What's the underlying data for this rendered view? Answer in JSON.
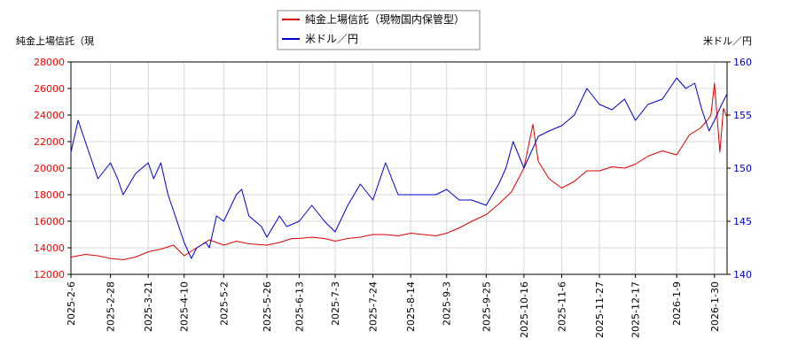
{
  "chart_data": {
    "type": "line",
    "y_left_label": "純金上場信託（現",
    "y_right_label": "米ドル／円",
    "legend": {
      "placement": "top-center"
    },
    "grid": true,
    "colors": {
      "left_axis": "#ff0000",
      "right_axis": "#0000cc",
      "grid": "#d8d8d8"
    },
    "ylim_left": [
      12000,
      28000
    ],
    "ylim_right": [
      140,
      160
    ],
    "yticks_left": [
      "28000",
      "26000",
      "24000",
      "22000",
      "20000",
      "18000",
      "16000",
      "14000",
      "12000"
    ],
    "yticks_right": [
      "160",
      "155",
      "150",
      "145",
      "140"
    ],
    "x_ticks": [
      "2025-2-6",
      "2025-2-28",
      "2025-3-21",
      "2025-4-10",
      "2025-5-2",
      "2025-5-26",
      "2025-6-13",
      "2025-7-3",
      "2025-7-24",
      "2025-8-14",
      "2025-9-3",
      "2025-9-25",
      "2025-10-16",
      "2025-11-6",
      "2025-11-27",
      "2025-12-17",
      "2026-1-9",
      "2026-1-30"
    ],
    "series": [
      {
        "name": "純金上場信託（現物国内保管型）",
        "axis": "left",
        "color": "#dd0000",
        "x": [
          "2025-2-6",
          "2025-2-14",
          "2025-2-21",
          "2025-2-28",
          "2025-3-7",
          "2025-3-14",
          "2025-3-21",
          "2025-3-28",
          "2025-4-4",
          "2025-4-10",
          "2025-4-17",
          "2025-4-24",
          "2025-5-2",
          "2025-5-9",
          "2025-5-16",
          "2025-5-26",
          "2025-6-2",
          "2025-6-9",
          "2025-6-13",
          "2025-6-20",
          "2025-6-27",
          "2025-7-3",
          "2025-7-10",
          "2025-7-17",
          "2025-7-24",
          "2025-7-31",
          "2025-8-7",
          "2025-8-14",
          "2025-8-21",
          "2025-8-28",
          "2025-9-3",
          "2025-9-10",
          "2025-9-17",
          "2025-9-25",
          "2025-10-2",
          "2025-10-9",
          "2025-10-16",
          "2025-10-21",
          "2025-10-24",
          "2025-10-30",
          "2025-11-6",
          "2025-11-13",
          "2025-11-20",
          "2025-11-27",
          "2025-12-4",
          "2025-12-11",
          "2025-12-17",
          "2025-12-24",
          "2026-1-1",
          "2026-1-9",
          "2026-1-16",
          "2026-1-22",
          "2026-1-26",
          "2026-1-28",
          "2026-1-30",
          "2026-2-2",
          "2026-2-4",
          "2026-2-6"
        ],
        "y": [
          13300,
          13500,
          13400,
          13200,
          13100,
          13300,
          13700,
          13900,
          14200,
          13400,
          14000,
          14600,
          14200,
          14500,
          14300,
          14200,
          14400,
          14700,
          14700,
          14800,
          14700,
          14500,
          14700,
          14800,
          15000,
          15000,
          14900,
          15100,
          15000,
          14900,
          15100,
          15500,
          16000,
          16500,
          17300,
          18200,
          20000,
          23300,
          20500,
          19200,
          18500,
          19000,
          19800,
          19800,
          20100,
          20000,
          20300,
          20900,
          21300,
          21000,
          22500,
          23000,
          23600,
          24000,
          26400,
          21200,
          24500,
          23800
        ]
      },
      {
        "name": "米ドル／円",
        "axis": "right",
        "color": "#0000cc",
        "x": [
          "2025-2-6",
          "2025-2-10",
          "2025-2-14",
          "2025-2-21",
          "2025-2-28",
          "2025-3-4",
          "2025-3-7",
          "2025-3-14",
          "2025-3-21",
          "2025-3-24",
          "2025-3-28",
          "2025-4-1",
          "2025-4-4",
          "2025-4-8",
          "2025-4-10",
          "2025-4-14",
          "2025-4-17",
          "2025-4-22",
          "2025-4-24",
          "2025-4-28",
          "2025-5-2",
          "2025-5-9",
          "2025-5-12",
          "2025-5-16",
          "2025-5-23",
          "2025-5-26",
          "2025-6-2",
          "2025-6-6",
          "2025-6-13",
          "2025-6-20",
          "2025-6-27",
          "2025-7-3",
          "2025-7-10",
          "2025-7-17",
          "2025-7-24",
          "2025-7-28",
          "2025-7-31",
          "2025-8-7",
          "2025-8-14",
          "2025-8-21",
          "2025-8-28",
          "2025-9-3",
          "2025-9-10",
          "2025-9-17",
          "2025-9-25",
          "2025-10-2",
          "2025-10-6",
          "2025-10-10",
          "2025-10-16",
          "2025-10-24",
          "2025-10-30",
          "2025-11-6",
          "2025-11-13",
          "2025-11-20",
          "2025-11-27",
          "2025-12-4",
          "2025-12-11",
          "2025-12-17",
          "2025-12-24",
          "2026-1-1",
          "2026-1-9",
          "2026-1-14",
          "2026-1-19",
          "2026-1-23",
          "2026-1-27",
          "2026-1-30",
          "2026-2-3",
          "2026-2-6"
        ],
        "y": [
          151.5,
          154.5,
          152.5,
          149.0,
          150.5,
          149.0,
          147.5,
          149.5,
          150.5,
          149.0,
          150.5,
          147.5,
          146.0,
          144.0,
          143.0,
          141.5,
          142.5,
          143.0,
          142.5,
          145.5,
          145.0,
          147.5,
          148.0,
          145.5,
          144.5,
          143.5,
          145.5,
          144.5,
          145.0,
          146.5,
          145.0,
          144.0,
          146.5,
          148.5,
          147.0,
          149.0,
          150.5,
          147.5,
          147.5,
          147.5,
          147.5,
          148.0,
          147.0,
          147.0,
          146.5,
          148.5,
          150.0,
          152.5,
          150.0,
          153.0,
          153.5,
          154.0,
          155.0,
          157.5,
          156.0,
          155.5,
          156.5,
          154.5,
          156.0,
          156.5,
          158.5,
          157.5,
          158.0,
          155.5,
          153.5,
          154.5,
          156.0,
          157.0
        ]
      }
    ]
  }
}
